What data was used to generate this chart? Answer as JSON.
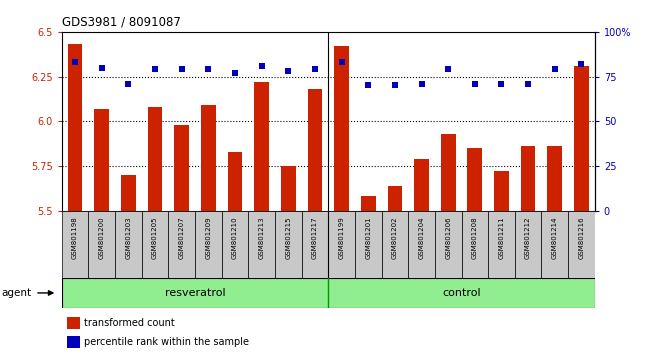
{
  "title": "GDS3981 / 8091087",
  "categories": [
    "GSM801198",
    "GSM801200",
    "GSM801203",
    "GSM801205",
    "GSM801207",
    "GSM801209",
    "GSM801210",
    "GSM801213",
    "GSM801215",
    "GSM801217",
    "GSM801199",
    "GSM801201",
    "GSM801202",
    "GSM801204",
    "GSM801206",
    "GSM801208",
    "GSM801211",
    "GSM801212",
    "GSM801214",
    "GSM801216"
  ],
  "bar_values": [
    6.43,
    6.07,
    5.7,
    6.08,
    5.98,
    6.09,
    5.83,
    6.22,
    5.75,
    6.18,
    6.42,
    5.58,
    5.64,
    5.79,
    5.93,
    5.85,
    5.72,
    5.86,
    5.86,
    6.31
  ],
  "percentile_values": [
    83,
    80,
    71,
    79,
    79,
    79,
    77,
    81,
    78,
    79,
    83,
    70,
    70,
    71,
    79,
    71,
    71,
    71,
    79,
    82
  ],
  "group_labels": [
    "resveratrol",
    "control"
  ],
  "group_sizes": [
    10,
    10
  ],
  "bar_color": "#cc2200",
  "dot_color": "#0000bb",
  "bg_color": "#ffffff",
  "ylim_left": [
    5.5,
    6.5
  ],
  "ylim_right": [
    0,
    100
  ],
  "yticks_left": [
    5.5,
    5.75,
    6.0,
    6.25,
    6.5
  ],
  "yticks_right": [
    0,
    25,
    50,
    75,
    100
  ],
  "ytick_labels_right": [
    "0",
    "25",
    "50",
    "75",
    "100%"
  ],
  "grid_values": [
    5.75,
    6.0,
    6.25
  ],
  "legend_items": [
    "transformed count",
    "percentile rank within the sample"
  ],
  "agent_label": "agent",
  "bar_width": 0.55,
  "cell_color": "#c8c8c8",
  "group_color": "#90ee90",
  "sep_color": "#009900"
}
